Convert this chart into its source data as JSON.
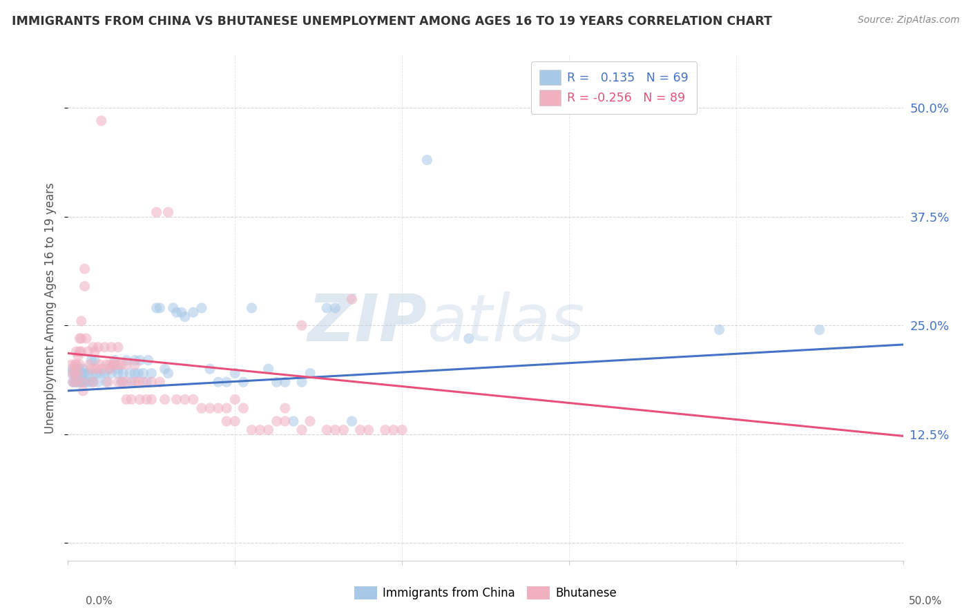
{
  "title": "IMMIGRANTS FROM CHINA VS BHUTANESE UNEMPLOYMENT AMONG AGES 16 TO 19 YEARS CORRELATION CHART",
  "source": "Source: ZipAtlas.com",
  "ylabel": "Unemployment Among Ages 16 to 19 years",
  "ytick_labels": [
    "",
    "12.5%",
    "25.0%",
    "37.5%",
    "50.0%"
  ],
  "ytick_values": [
    0,
    0.125,
    0.25,
    0.375,
    0.5
  ],
  "xlim": [
    0,
    0.5
  ],
  "ylim": [
    -0.02,
    0.56
  ],
  "blue_scatter": [
    [
      0.002,
      0.195
    ],
    [
      0.003,
      0.2
    ],
    [
      0.003,
      0.185
    ],
    [
      0.004,
      0.195
    ],
    [
      0.004,
      0.185
    ],
    [
      0.005,
      0.2
    ],
    [
      0.005,
      0.195
    ],
    [
      0.005,
      0.185
    ],
    [
      0.006,
      0.195
    ],
    [
      0.006,
      0.185
    ],
    [
      0.007,
      0.2
    ],
    [
      0.007,
      0.185
    ],
    [
      0.008,
      0.195
    ],
    [
      0.008,
      0.185
    ],
    [
      0.009,
      0.195
    ],
    [
      0.009,
      0.2
    ],
    [
      0.01,
      0.195
    ],
    [
      0.01,
      0.185
    ],
    [
      0.011,
      0.185
    ],
    [
      0.012,
      0.195
    ],
    [
      0.013,
      0.185
    ],
    [
      0.014,
      0.21
    ],
    [
      0.015,
      0.195
    ],
    [
      0.015,
      0.185
    ],
    [
      0.016,
      0.21
    ],
    [
      0.017,
      0.195
    ],
    [
      0.018,
      0.185
    ],
    [
      0.02,
      0.195
    ],
    [
      0.022,
      0.195
    ],
    [
      0.023,
      0.185
    ],
    [
      0.025,
      0.2
    ],
    [
      0.026,
      0.195
    ],
    [
      0.028,
      0.21
    ],
    [
      0.03,
      0.2
    ],
    [
      0.03,
      0.195
    ],
    [
      0.032,
      0.185
    ],
    [
      0.033,
      0.195
    ],
    [
      0.035,
      0.21
    ],
    [
      0.037,
      0.195
    ],
    [
      0.038,
      0.185
    ],
    [
      0.04,
      0.21
    ],
    [
      0.04,
      0.195
    ],
    [
      0.042,
      0.195
    ],
    [
      0.043,
      0.21
    ],
    [
      0.045,
      0.195
    ],
    [
      0.047,
      0.185
    ],
    [
      0.048,
      0.21
    ],
    [
      0.05,
      0.195
    ],
    [
      0.053,
      0.27
    ],
    [
      0.055,
      0.27
    ],
    [
      0.058,
      0.2
    ],
    [
      0.06,
      0.195
    ],
    [
      0.063,
      0.27
    ],
    [
      0.065,
      0.265
    ],
    [
      0.068,
      0.265
    ],
    [
      0.07,
      0.26
    ],
    [
      0.075,
      0.265
    ],
    [
      0.08,
      0.27
    ],
    [
      0.085,
      0.2
    ],
    [
      0.09,
      0.185
    ],
    [
      0.095,
      0.185
    ],
    [
      0.1,
      0.195
    ],
    [
      0.105,
      0.185
    ],
    [
      0.11,
      0.27
    ],
    [
      0.12,
      0.2
    ],
    [
      0.125,
      0.185
    ],
    [
      0.13,
      0.185
    ],
    [
      0.135,
      0.14
    ],
    [
      0.14,
      0.185
    ],
    [
      0.145,
      0.195
    ],
    [
      0.155,
      0.27
    ],
    [
      0.16,
      0.27
    ],
    [
      0.17,
      0.14
    ],
    [
      0.215,
      0.44
    ],
    [
      0.24,
      0.235
    ],
    [
      0.39,
      0.245
    ],
    [
      0.45,
      0.245
    ]
  ],
  "pink_scatter": [
    [
      0.002,
      0.205
    ],
    [
      0.003,
      0.195
    ],
    [
      0.003,
      0.185
    ],
    [
      0.004,
      0.205
    ],
    [
      0.004,
      0.195
    ],
    [
      0.005,
      0.22
    ],
    [
      0.005,
      0.205
    ],
    [
      0.005,
      0.185
    ],
    [
      0.006,
      0.215
    ],
    [
      0.006,
      0.195
    ],
    [
      0.007,
      0.235
    ],
    [
      0.007,
      0.22
    ],
    [
      0.007,
      0.205
    ],
    [
      0.008,
      0.255
    ],
    [
      0.008,
      0.235
    ],
    [
      0.008,
      0.22
    ],
    [
      0.009,
      0.175
    ],
    [
      0.009,
      0.185
    ],
    [
      0.01,
      0.315
    ],
    [
      0.01,
      0.295
    ],
    [
      0.011,
      0.235
    ],
    [
      0.012,
      0.22
    ],
    [
      0.013,
      0.205
    ],
    [
      0.014,
      0.2
    ],
    [
      0.015,
      0.225
    ],
    [
      0.015,
      0.185
    ],
    [
      0.016,
      0.22
    ],
    [
      0.017,
      0.2
    ],
    [
      0.018,
      0.225
    ],
    [
      0.019,
      0.205
    ],
    [
      0.02,
      0.2
    ],
    [
      0.02,
      0.485
    ],
    [
      0.022,
      0.225
    ],
    [
      0.023,
      0.205
    ],
    [
      0.024,
      0.185
    ],
    [
      0.025,
      0.205
    ],
    [
      0.025,
      0.2
    ],
    [
      0.026,
      0.225
    ],
    [
      0.027,
      0.205
    ],
    [
      0.028,
      0.205
    ],
    [
      0.03,
      0.205
    ],
    [
      0.03,
      0.225
    ],
    [
      0.03,
      0.185
    ],
    [
      0.032,
      0.205
    ],
    [
      0.033,
      0.185
    ],
    [
      0.035,
      0.165
    ],
    [
      0.035,
      0.185
    ],
    [
      0.035,
      0.205
    ],
    [
      0.038,
      0.165
    ],
    [
      0.04,
      0.185
    ],
    [
      0.04,
      0.205
    ],
    [
      0.042,
      0.185
    ],
    [
      0.043,
      0.165
    ],
    [
      0.045,
      0.185
    ],
    [
      0.047,
      0.165
    ],
    [
      0.05,
      0.165
    ],
    [
      0.05,
      0.185
    ],
    [
      0.053,
      0.38
    ],
    [
      0.055,
      0.185
    ],
    [
      0.058,
      0.165
    ],
    [
      0.06,
      0.38
    ],
    [
      0.065,
      0.165
    ],
    [
      0.07,
      0.165
    ],
    [
      0.075,
      0.165
    ],
    [
      0.08,
      0.155
    ],
    [
      0.085,
      0.155
    ],
    [
      0.09,
      0.155
    ],
    [
      0.095,
      0.155
    ],
    [
      0.095,
      0.14
    ],
    [
      0.1,
      0.165
    ],
    [
      0.1,
      0.14
    ],
    [
      0.105,
      0.155
    ],
    [
      0.11,
      0.13
    ],
    [
      0.115,
      0.13
    ],
    [
      0.12,
      0.13
    ],
    [
      0.125,
      0.14
    ],
    [
      0.13,
      0.155
    ],
    [
      0.13,
      0.14
    ],
    [
      0.14,
      0.25
    ],
    [
      0.14,
      0.13
    ],
    [
      0.145,
      0.14
    ],
    [
      0.155,
      0.13
    ],
    [
      0.16,
      0.13
    ],
    [
      0.165,
      0.13
    ],
    [
      0.17,
      0.28
    ],
    [
      0.175,
      0.13
    ],
    [
      0.18,
      0.13
    ],
    [
      0.19,
      0.13
    ],
    [
      0.195,
      0.13
    ],
    [
      0.2,
      0.13
    ]
  ],
  "blue_trend": {
    "x_start": 0.0,
    "y_start": 0.175,
    "x_end": 0.5,
    "y_end": 0.228
  },
  "pink_trend": {
    "x_start": 0.0,
    "y_start": 0.218,
    "x_end": 0.5,
    "y_end": 0.123
  },
  "dot_size": 120,
  "dot_alpha": 0.55,
  "blue_color": "#a8c8e8",
  "pink_color": "#f0b0c0",
  "blue_line_color": "#4472c4",
  "pink_line_color": "#e8507a",
  "grid_color": "#cccccc",
  "background_color": "#ffffff"
}
